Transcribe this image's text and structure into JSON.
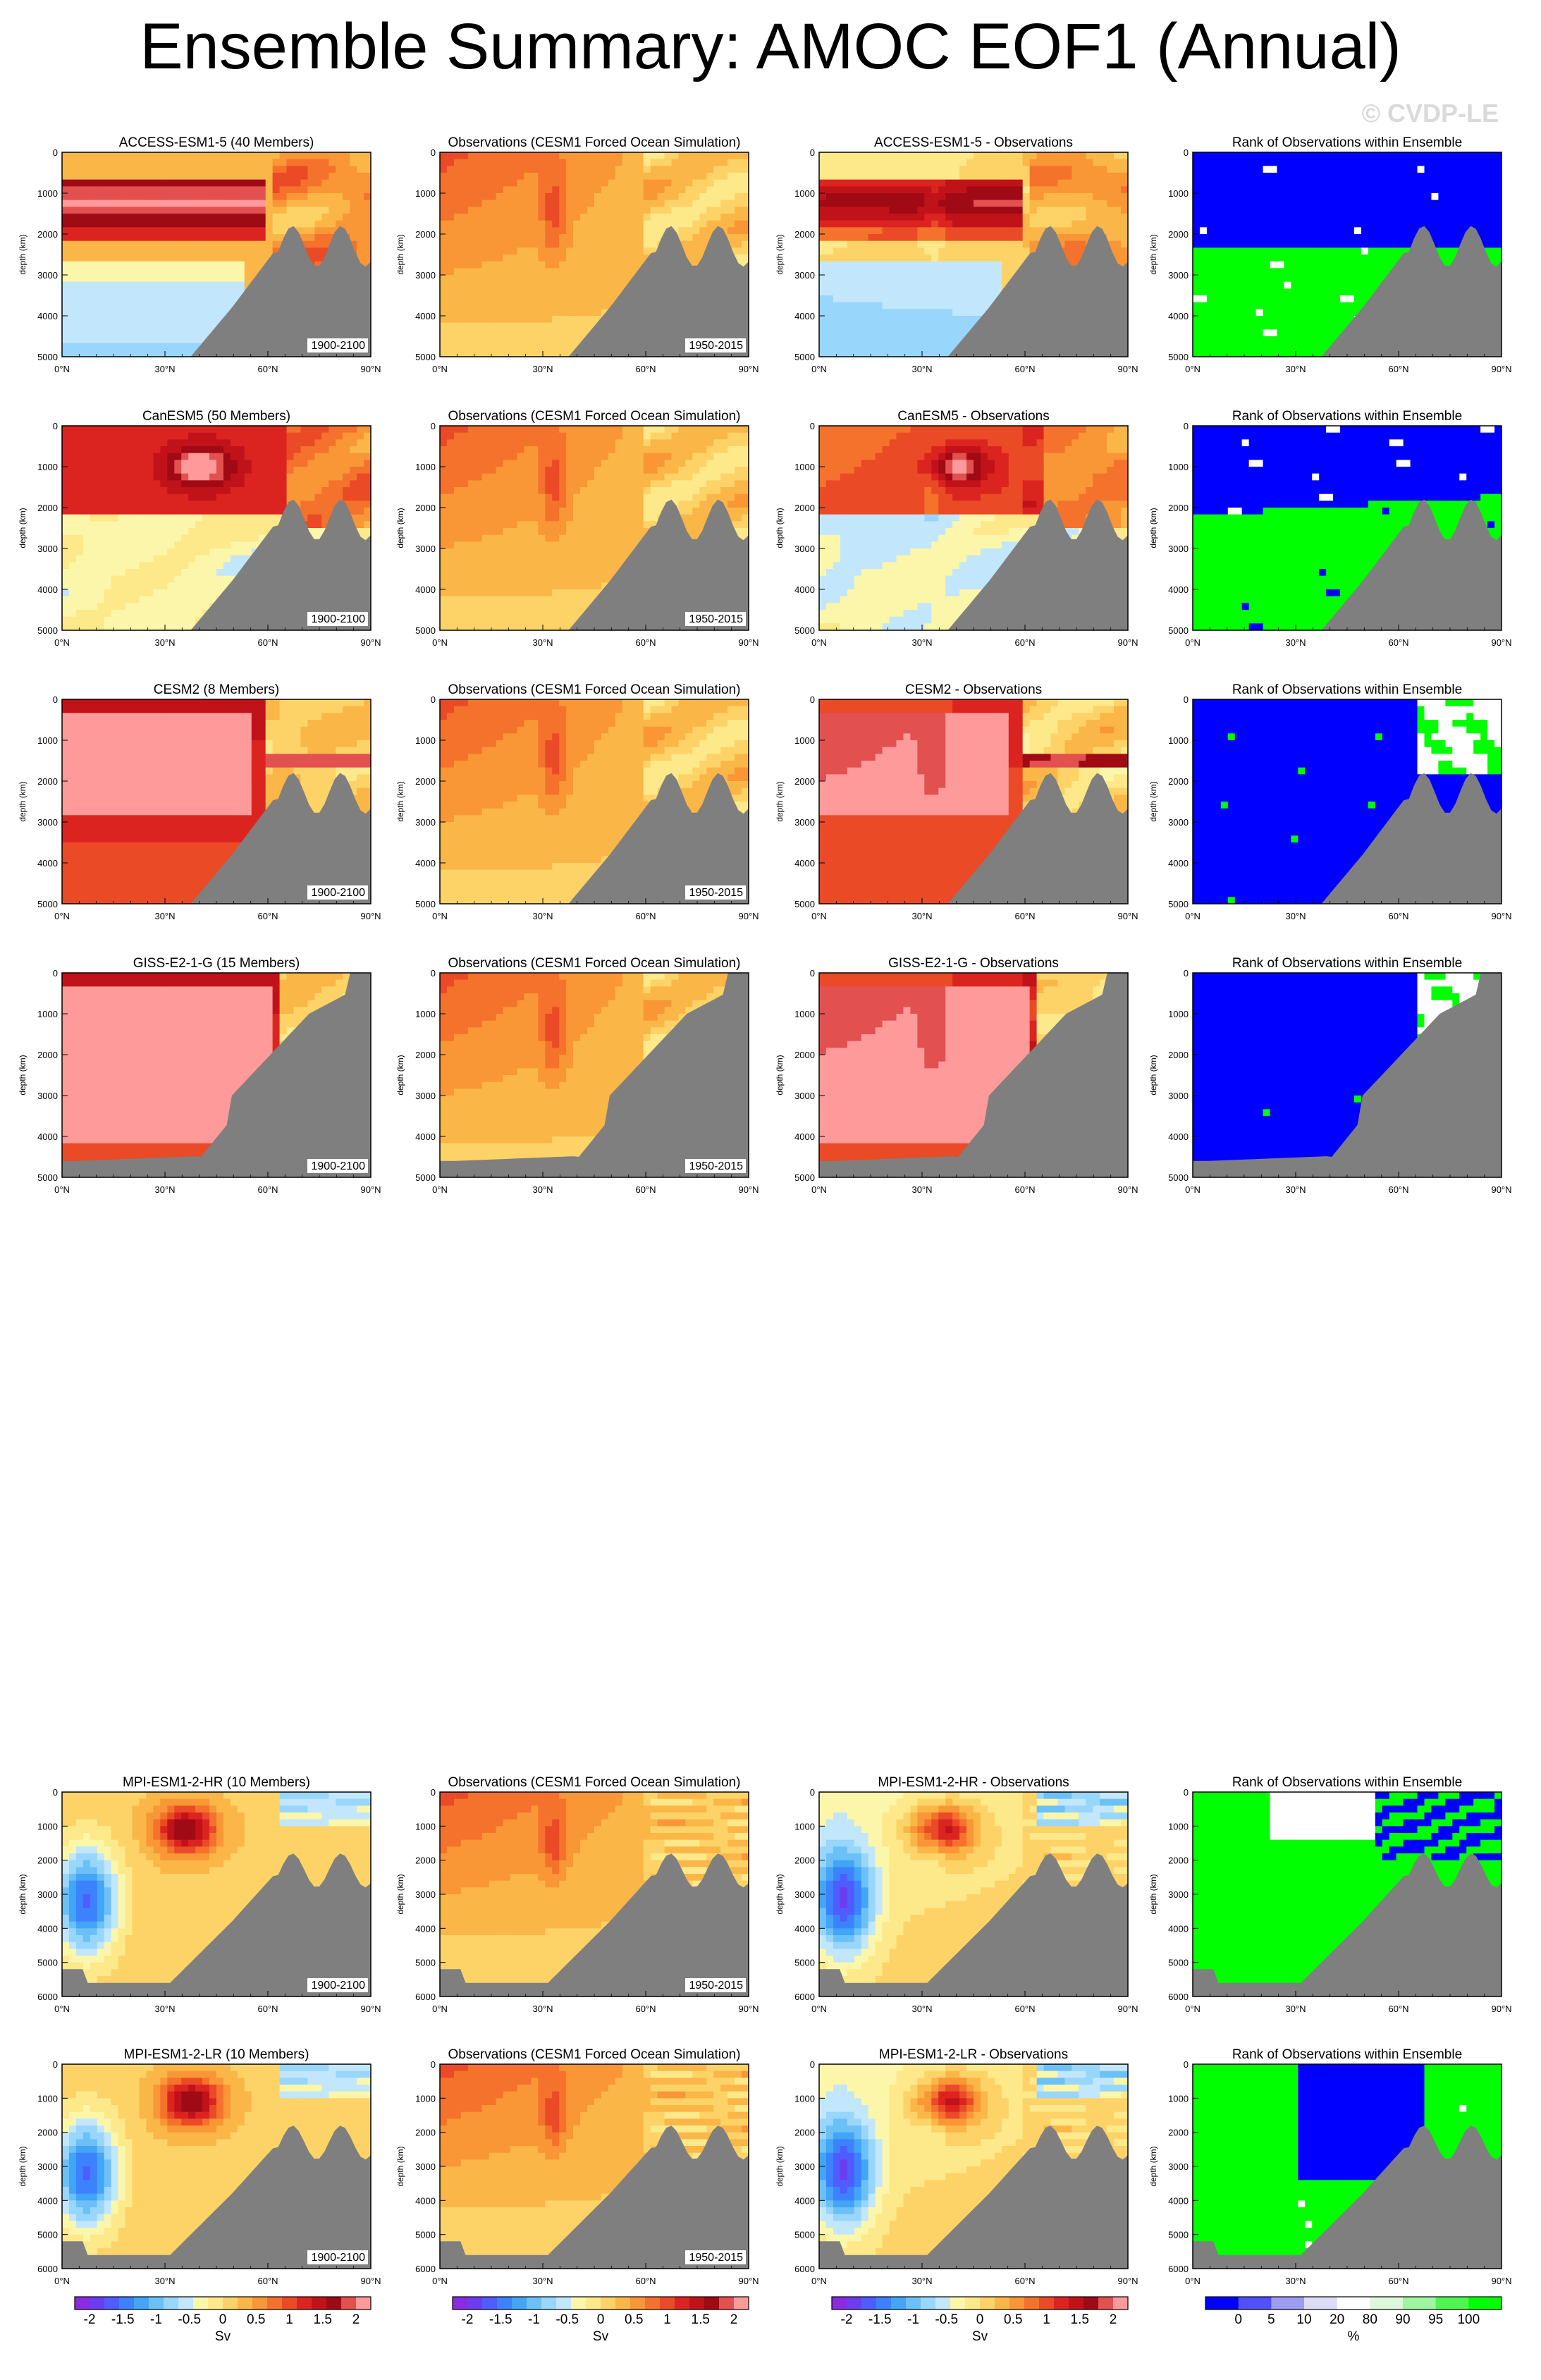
{
  "title": "Ensemble Summary: AMOC EOF1 (Annual)",
  "watermark": "© CVDP-LE",
  "colors": {
    "land": "#7f7f7f",
    "plot_border": "#000000",
    "rank_blue": "#0000ff",
    "rank_green": "#00ff00",
    "rank_white": "#ffffff"
  },
  "chart_data": {
    "type": "heatmap",
    "layout": {
      "rows": 6,
      "columns": 4
    },
    "x_ticks": [
      "0°N",
      "30°N",
      "60°N",
      "90°N"
    ],
    "y_label": "depth (km)",
    "y_ticks_5000": [
      "0",
      "1000",
      "2000",
      "3000",
      "4000",
      "5000"
    ],
    "y_ticks_6000": [
      "0",
      "1000",
      "2000",
      "3000",
      "4000",
      "5000",
      "6000"
    ],
    "obs_title": "Observations (CESM1 Forced Ocean Simulation)",
    "obs_period": "1950-2015",
    "rank_title": "Rank of Observations within Ensemble",
    "rows": [
      {
        "model_title": "ACCESS-ESM1-5 (40 Members)",
        "diff_title": "ACCESS-ESM1-5 - Observations",
        "period": "1900-2100",
        "ymax": 5000
      },
      {
        "model_title": "CanESM5 (50 Members)",
        "diff_title": "CanESM5 - Observations",
        "period": "1900-2100",
        "ymax": 5000
      },
      {
        "model_title": "CESM2 (8 Members)",
        "diff_title": "CESM2 - Observations",
        "period": "1900-2100",
        "ymax": 5000
      },
      {
        "model_title": "GISS-E2-1-G (15 Members)",
        "diff_title": "GISS-E2-1-G - Observations",
        "period": "1900-2100",
        "ymax": 5000
      },
      {
        "model_title": "MPI-ESM1-2-HR (10 Members)",
        "diff_title": "MPI-ESM1-2-HR - Observations",
        "period": "1900-2100",
        "ymax": 6000
      },
      {
        "model_title": "MPI-ESM1-2-LR (10 Members)",
        "diff_title": "MPI-ESM1-2-LR - Observations",
        "period": "1900-2100",
        "ymax": 6000
      }
    ],
    "sv_colorbar": {
      "unit": "Sv",
      "labels": [
        "-2",
        "-1.5",
        "-1",
        "-0.5",
        "0",
        "0.5",
        "1",
        "1.5",
        "2"
      ],
      "colors": [
        "#8a2be2",
        "#6d3cf0",
        "#4f5cff",
        "#3c82ff",
        "#42a5f5",
        "#6cc0f8",
        "#98d6fb",
        "#c2e6fb",
        "#fbf6a9",
        "#fde88a",
        "#fdd367",
        "#fbb648",
        "#f99636",
        "#f4722c",
        "#ea4a26",
        "#db2420",
        "#c1121a",
        "#a00a14",
        "#e25050",
        "#ff9a9a"
      ]
    },
    "pct_colorbar": {
      "unit": "%",
      "labels": [
        "0",
        "5",
        "10",
        "20",
        "80",
        "90",
        "95",
        "100"
      ],
      "colors": [
        "#0000ff",
        "#5050ff",
        "#9c9cf2",
        "#dcdcf7",
        "#ffffff",
        "#dcf7dc",
        "#a0f5a0",
        "#50f550",
        "#00ff00"
      ]
    }
  }
}
